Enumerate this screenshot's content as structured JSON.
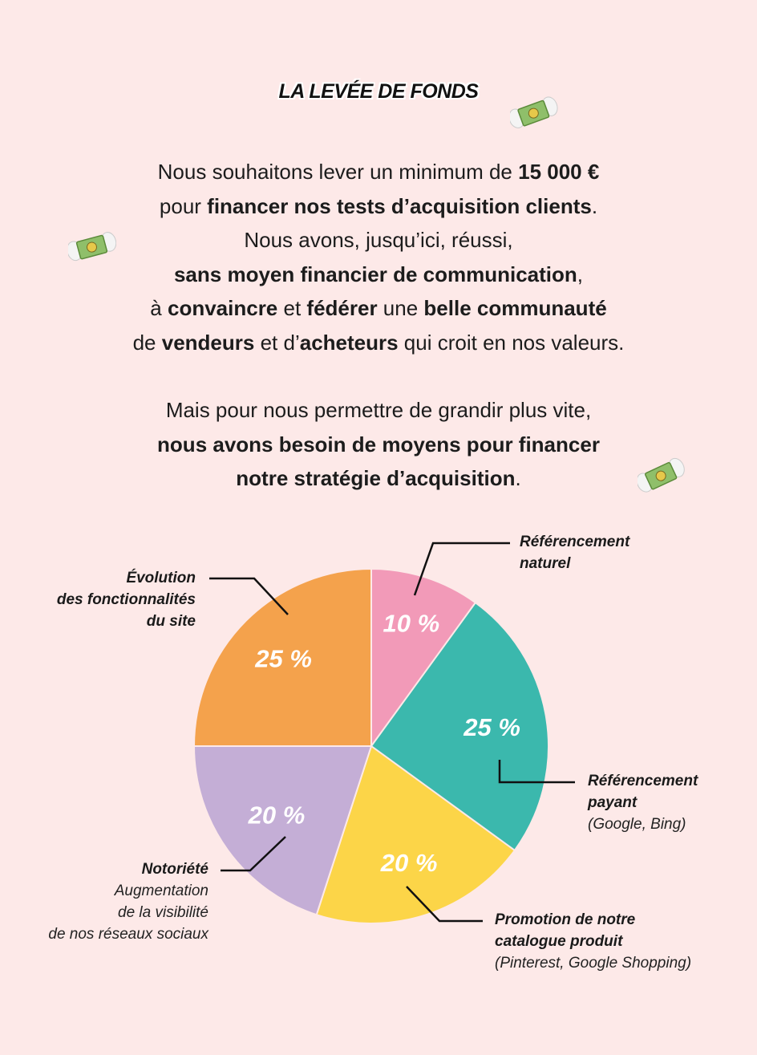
{
  "title": "LA LEVÉE DE FONDS",
  "intro": {
    "p1_l1_a": "Nous souhaitons lever un minimum de ",
    "p1_l1_b": "15 000 €",
    "p1_l2_a": "pour ",
    "p1_l2_b": "financer nos tests d’acquisition clients",
    "p1_l2_c": ".",
    "p1_l3": "Nous avons, jusqu’ici, réussi,",
    "p1_l4_a": "sans moyen financier de communication",
    "p1_l4_b": ",",
    "p1_l5_a": "à ",
    "p1_l5_b": "convaincre",
    "p1_l5_c": " et ",
    "p1_l5_d": "fédérer",
    "p1_l5_e": " une ",
    "p1_l5_f": "belle communauté",
    "p1_l6_a": "de ",
    "p1_l6_b": "vendeurs",
    "p1_l6_c": " et d’",
    "p1_l6_d": "acheteurs",
    "p1_l6_e": " qui croit en nos valeurs.",
    "p2_l1": "Mais pour nous permettre de grandir plus vite,",
    "p2_l2": "nous avons besoin de moyens pour financer",
    "p2_l3_a": "notre stratégie d’acquisition",
    "p2_l3_b": "."
  },
  "chart_data": {
    "type": "pie",
    "unit": "%",
    "slices": [
      {
        "name": "Référencement naturel",
        "value": 10,
        "label": "10 %",
        "color": "#f29ab8"
      },
      {
        "name": "Référencement payant",
        "value": 25,
        "label": "25 %",
        "color": "#3bb8ad"
      },
      {
        "name": "Promotion de notre catalogue produit",
        "value": 20,
        "label": "20 %",
        "color": "#fcd548"
      },
      {
        "name": "Notoriété",
        "value": 20,
        "label": "20 %",
        "color": "#c4aed6"
      },
      {
        "name": "Évolution des fonctionnalités du site",
        "value": 25,
        "label": "25 %",
        "color": "#f4a24c"
      }
    ]
  },
  "labels": {
    "ref_naturel": {
      "l1": "Référencement",
      "l2": "naturel"
    },
    "ref_payant": {
      "l1": "Référencement",
      "l2": "payant",
      "sub": "(Google, Bing)"
    },
    "promotion": {
      "l1": "Promotion de notre",
      "l2": "catalogue produit",
      "sub": "(Pinterest, Google Shopping)"
    },
    "notoriete": {
      "l1": "Notoriété",
      "s1": "Augmentation",
      "s2": "de la visibilité",
      "s3": "de nos réseaux sociaux"
    },
    "evolution": {
      "l1": "Évolution",
      "l2": "des fonctionnalités",
      "l3": "du site"
    }
  },
  "colors": {
    "background": "#fde9e8",
    "text": "#1a1a1a",
    "leader": "#111111"
  },
  "icons": [
    "money-with-wings-icon",
    "money-with-wings-icon",
    "money-with-wings-icon"
  ]
}
